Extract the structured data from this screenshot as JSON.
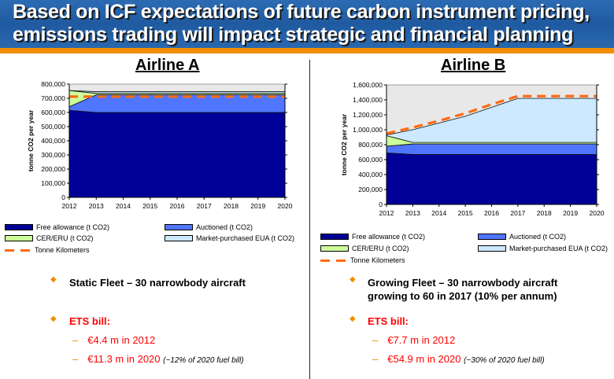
{
  "header": {
    "title_line1": "Based on ICF expectations of future carbon instrument pricing,",
    "title_line2": "emissions trading will impact strategic and financial planning"
  },
  "colors": {
    "free": "#000099",
    "auctioned": "#5075ff",
    "cer": "#ccff99",
    "market": "#cce9ff",
    "tonne_km": "#ff6a13",
    "plot_bg": "#e8e8e8",
    "accent": "#f28c00"
  },
  "legend": {
    "free": "Free allowance (t CO2)",
    "auctioned": "Auctioned (t CO2)",
    "cer": "CER/ERU (t CO2)",
    "market": "Market-purchased EUA (t CO2)",
    "tonne_km": "Tonne Kilometers"
  },
  "airlineA": {
    "heading": "Airline A",
    "bullet1": "Static Fleet – 30 narrowbody aircraft",
    "ets_label": "ETS bill:",
    "ets_2012": "€4.4 m in 2012",
    "ets_2020": "€11.3 m in 2020",
    "ets_2020_note": "(~12% of 2020 fuel bill)"
  },
  "airlineB": {
    "heading": "Airline B",
    "bullet1_line1": "Growing Fleet – 30 narrowbody aircraft",
    "bullet1_line2": "growing to 60 in 2017 (10% per annum)",
    "ets_label": "ETS bill:",
    "ets_2012": "€7.7 m in 2012",
    "ets_2020": "€54.9 m in 2020",
    "ets_2020_note": "(~30% of 2020 fuel bill)"
  },
  "chart_data": [
    {
      "type": "area",
      "title": "Airline A",
      "xlabel": "",
      "ylabel": "tonne CO2 per year",
      "x": [
        2012,
        2013,
        2014,
        2015,
        2016,
        2017,
        2018,
        2019,
        2020
      ],
      "ylim": [
        0,
        800000
      ],
      "yticks": [
        0,
        100000,
        200000,
        300000,
        400000,
        500000,
        600000,
        700000,
        800000
      ],
      "ytick_labels": [
        "0",
        "100,000",
        "200,000",
        "300,000",
        "400,000",
        "500,000",
        "600,000",
        "700,000",
        "800,000"
      ],
      "stacked": true,
      "series": [
        {
          "name": "Free allowance (t CO2)",
          "values": [
            615000,
            600000,
            600000,
            600000,
            600000,
            600000,
            600000,
            600000,
            600000
          ]
        },
        {
          "name": "Auctioned (t CO2)",
          "values": [
            25000,
            125000,
            125000,
            125000,
            125000,
            125000,
            125000,
            125000,
            125000
          ]
        },
        {
          "name": "CER/ERU (t CO2)",
          "values": [
            115000,
            10000,
            10000,
            10000,
            10000,
            10000,
            10000,
            10000,
            10000
          ]
        },
        {
          "name": "Market-purchased EUA (t CO2)",
          "values": [
            0,
            12000,
            12000,
            12000,
            12000,
            12000,
            12000,
            12000,
            12000
          ]
        }
      ],
      "lines": [
        {
          "name": "Tonne Kilometers",
          "values": [
            712000,
            712000,
            712000,
            712000,
            712000,
            712000,
            712000,
            712000,
            712000
          ]
        }
      ],
      "legend_position": "bottom"
    },
    {
      "type": "area",
      "title": "Airline B",
      "xlabel": "",
      "ylabel": "tonne CO2 per year",
      "x": [
        2012,
        2013,
        2014,
        2015,
        2016,
        2017,
        2018,
        2019,
        2020
      ],
      "ylim": [
        0,
        1600000
      ],
      "yticks": [
        0,
        200000,
        400000,
        600000,
        800000,
        1000000,
        1200000,
        1400000,
        1600000
      ],
      "ytick_labels": [
        "0",
        "200,000",
        "400,000",
        "600,000",
        "800,000",
        "1,000,000",
        "1,200,000",
        "1,400,000",
        "1,600,000"
      ],
      "stacked": true,
      "series": [
        {
          "name": "Free allowance (t CO2)",
          "values": [
            690000,
            670000,
            670000,
            670000,
            670000,
            670000,
            670000,
            670000,
            670000
          ]
        },
        {
          "name": "Auctioned (t CO2)",
          "values": [
            90000,
            140000,
            140000,
            140000,
            140000,
            140000,
            140000,
            140000,
            140000
          ]
        },
        {
          "name": "CER/ERU (t CO2)",
          "values": [
            140000,
            20000,
            20000,
            20000,
            20000,
            20000,
            20000,
            20000,
            20000
          ]
        },
        {
          "name": "Market-purchased EUA (t CO2)",
          "values": [
            10000,
            170000,
            260000,
            350000,
            470000,
            590000,
            590000,
            590000,
            590000
          ]
        }
      ],
      "lines": [
        {
          "name": "Tonne Kilometers",
          "values": [
            950000,
            1030000,
            1120000,
            1220000,
            1340000,
            1450000,
            1450000,
            1450000,
            1450000
          ]
        }
      ],
      "legend_position": "bottom"
    }
  ]
}
